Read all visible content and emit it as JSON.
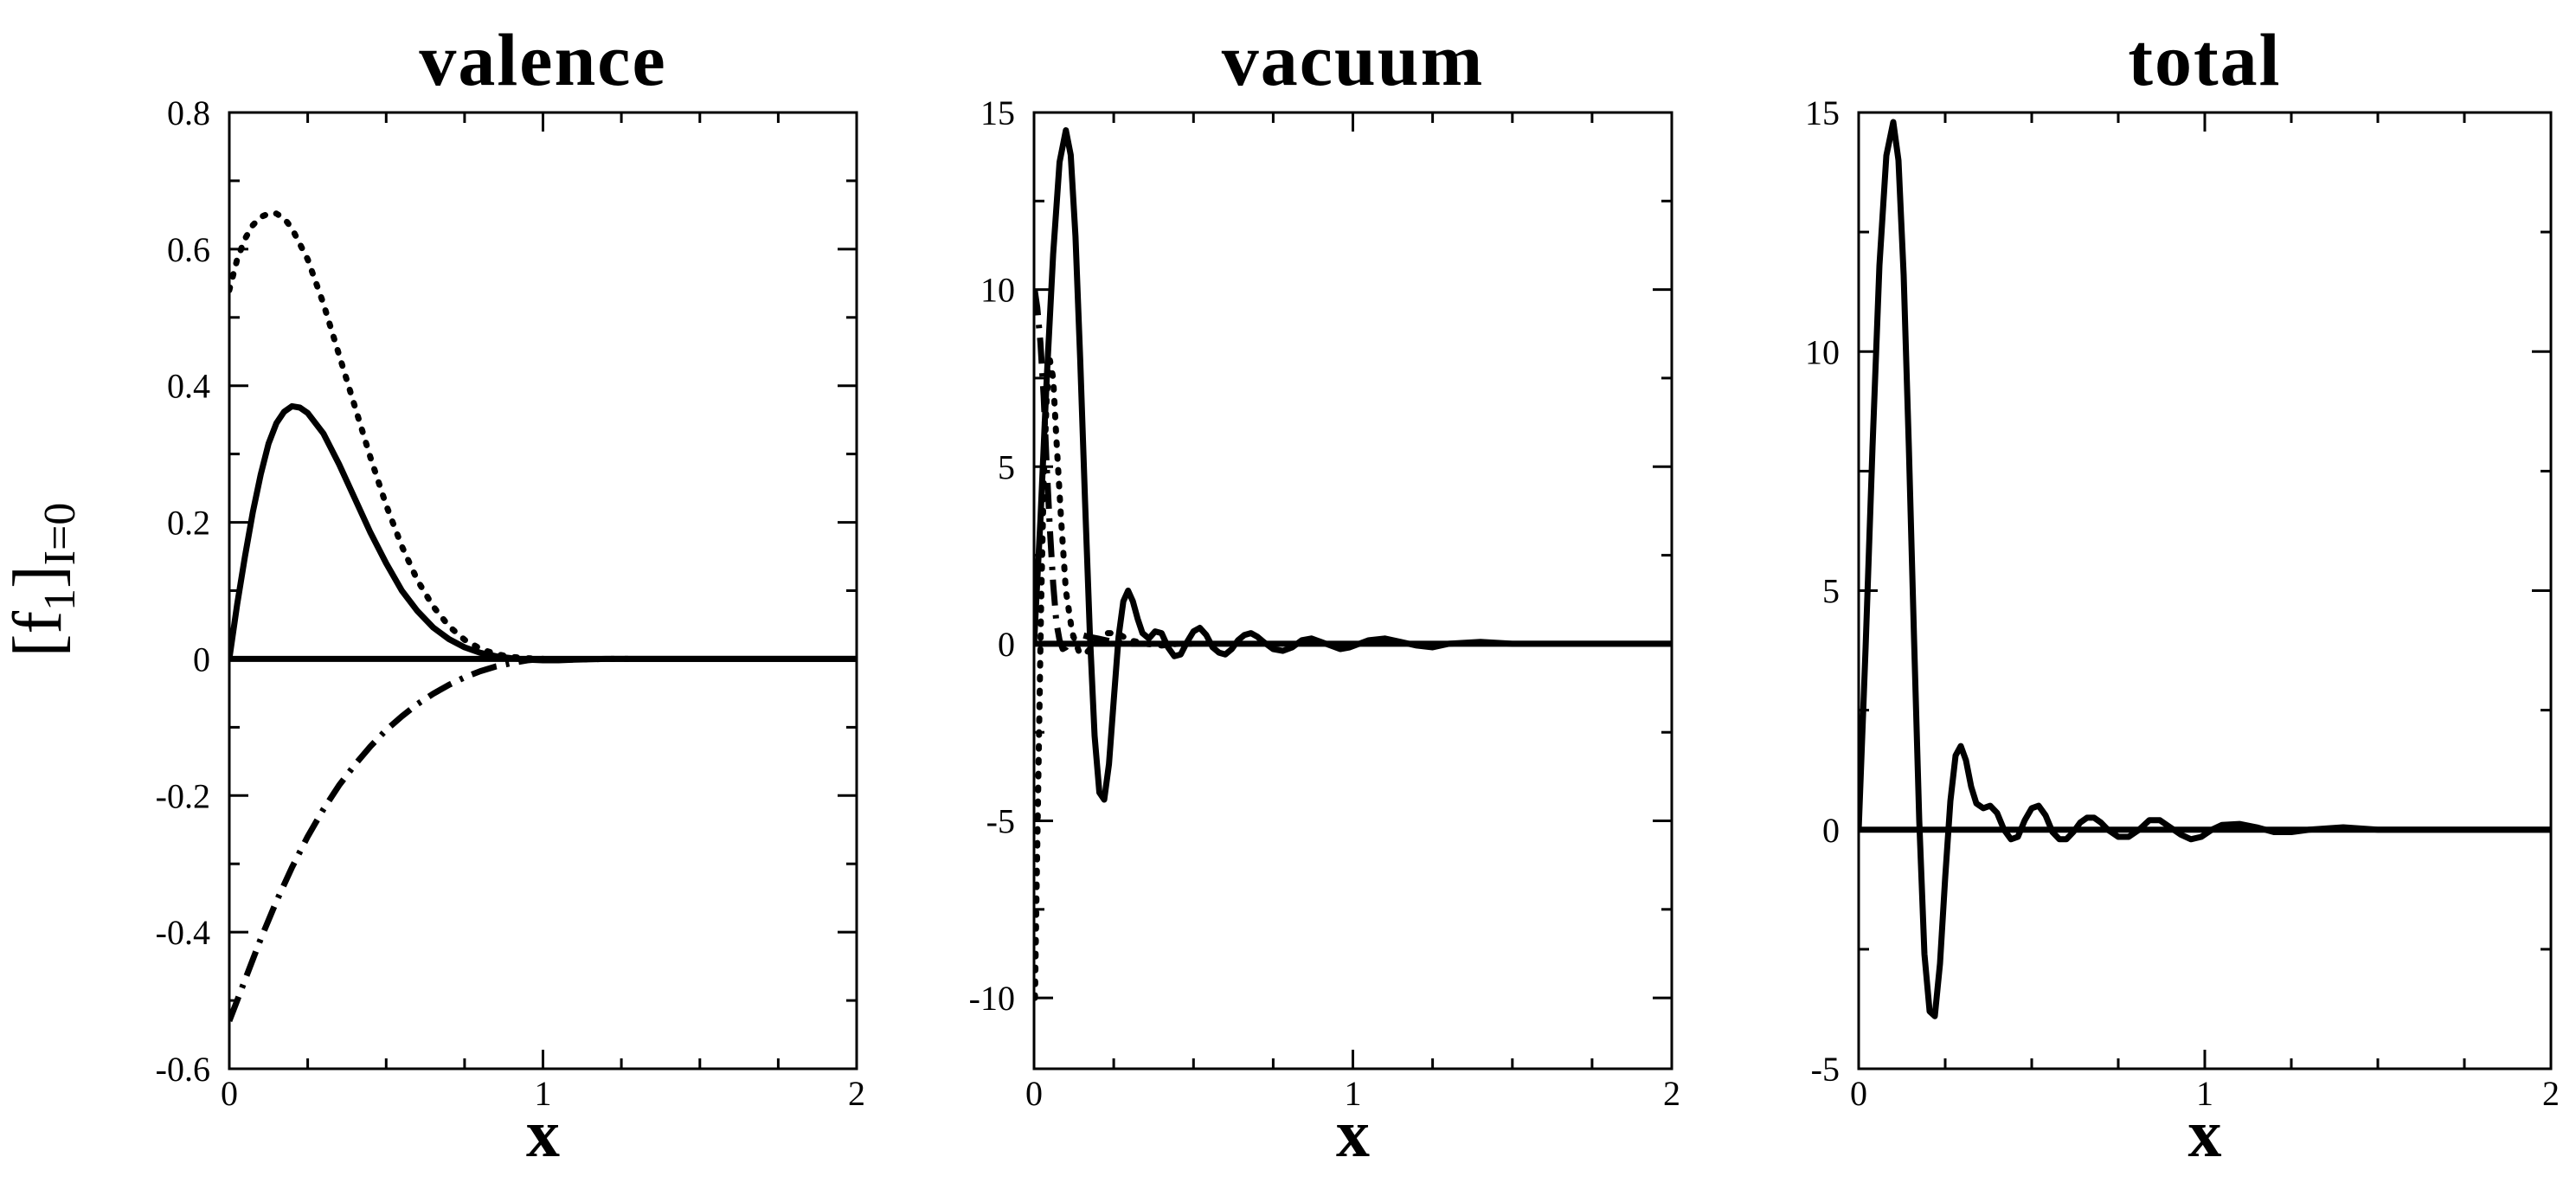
{
  "figure": {
    "ylabel": {
      "main": "[f",
      "sub1": "1",
      "close": "]",
      "sub2": "I=0"
    }
  },
  "chart_data": [
    {
      "type": "line",
      "title": "valence",
      "xlabel": "x",
      "ylabel": "[f1]I=0",
      "xlim": [
        0,
        2
      ],
      "ylim": [
        -0.6,
        0.8
      ],
      "x_ticks": [
        0,
        1,
        2
      ],
      "x_tick_labels": [
        "0",
        "1",
        "2"
      ],
      "y_ticks": [
        -0.6,
        -0.4,
        -0.2,
        0,
        0.2,
        0.4,
        0.6,
        0.8
      ],
      "y_tick_labels": [
        "-0.6",
        "-0.4",
        "-0.2",
        "0",
        "0.2",
        "0.4",
        "0.6",
        "0.8"
      ],
      "grid": false,
      "series": [
        {
          "style": "solid",
          "color": "#000000",
          "x": [
            0,
            0.025,
            0.05,
            0.075,
            0.1,
            0.125,
            0.15,
            0.175,
            0.2,
            0.225,
            0.25,
            0.3,
            0.35,
            0.4,
            0.45,
            0.5,
            0.55,
            0.6,
            0.65,
            0.7,
            0.75,
            0.8,
            0.85,
            0.9,
            0.95,
            1.0,
            1.05,
            1.1,
            1.2,
            1.3,
            1.5,
            1.7,
            2.0
          ],
          "y": [
            0,
            0.08,
            0.15,
            0.215,
            0.27,
            0.315,
            0.345,
            0.362,
            0.37,
            0.368,
            0.36,
            0.33,
            0.285,
            0.235,
            0.185,
            0.14,
            0.1,
            0.07,
            0.046,
            0.029,
            0.017,
            0.009,
            0.004,
            0.001,
            -0.001,
            -0.002,
            -0.002,
            -0.001,
            0,
            0,
            0,
            0,
            0
          ]
        },
        {
          "style": "dotted",
          "color": "#000000",
          "x": [
            0,
            0.025,
            0.05,
            0.075,
            0.1,
            0.125,
            0.15,
            0.175,
            0.2,
            0.25,
            0.3,
            0.35,
            0.4,
            0.45,
            0.5,
            0.55,
            0.6,
            0.65,
            0.7,
            0.75,
            0.8,
            0.85,
            0.9,
            0.95,
            1.0,
            1.05,
            1.1,
            1.2,
            1.3
          ],
          "y": [
            0.54,
            0.585,
            0.615,
            0.635,
            0.647,
            0.652,
            0.652,
            0.645,
            0.63,
            0.585,
            0.52,
            0.445,
            0.37,
            0.295,
            0.225,
            0.165,
            0.115,
            0.077,
            0.048,
            0.028,
            0.015,
            0.007,
            0.003,
            0.001,
            0,
            -0.001,
            -0.001,
            0,
            0
          ]
        },
        {
          "style": "dashdot",
          "color": "#000000",
          "x": [
            0,
            0.025,
            0.05,
            0.1,
            0.15,
            0.2,
            0.25,
            0.3,
            0.35,
            0.4,
            0.45,
            0.5,
            0.55,
            0.6,
            0.65,
            0.7,
            0.75,
            0.8,
            0.85,
            0.9,
            0.95,
            1.0
          ],
          "y": [
            -0.53,
            -0.5,
            -0.47,
            -0.41,
            -0.355,
            -0.305,
            -0.26,
            -0.22,
            -0.185,
            -0.155,
            -0.128,
            -0.104,
            -0.084,
            -0.066,
            -0.051,
            -0.038,
            -0.027,
            -0.018,
            -0.011,
            -0.006,
            -0.002,
            0
          ]
        },
        {
          "style": "solid",
          "color": "#000000",
          "x": [
            0,
            2
          ],
          "y": [
            0,
            0
          ]
        }
      ]
    },
    {
      "type": "line",
      "title": "vacuum",
      "xlabel": "x",
      "xlim": [
        0,
        2
      ],
      "ylim": [
        -12,
        15
      ],
      "x_ticks": [
        0,
        1,
        2
      ],
      "x_tick_labels": [
        "0",
        "1",
        "2"
      ],
      "y_ticks": [
        -10,
        -5,
        0,
        5,
        10,
        15
      ],
      "y_tick_labels": [
        "-10",
        "-5",
        "0",
        "5",
        "10",
        "15"
      ],
      "grid": false,
      "series": [
        {
          "style": "solid",
          "color": "#000000",
          "x": [
            0,
            0.02,
            0.04,
            0.06,
            0.08,
            0.1,
            0.115,
            0.13,
            0.145,
            0.16,
            0.175,
            0.19,
            0.205,
            0.22,
            0.235,
            0.25,
            0.265,
            0.28,
            0.295,
            0.31,
            0.325,
            0.34,
            0.36,
            0.38,
            0.4,
            0.42,
            0.44,
            0.46,
            0.48,
            0.5,
            0.52,
            0.54,
            0.56,
            0.58,
            0.6,
            0.62,
            0.64,
            0.66,
            0.68,
            0.7,
            0.72,
            0.75,
            0.78,
            0.81,
            0.84,
            0.87,
            0.9,
            0.93,
            0.96,
            0.99,
            1.02,
            1.05,
            1.1,
            1.15,
            1.2,
            1.25,
            1.3,
            1.4,
            1.5,
            1.7,
            2.0
          ],
          "y": [
            0,
            3.5,
            7.5,
            11.0,
            13.6,
            14.5,
            13.8,
            11.5,
            8.0,
            4.0,
            0.3,
            -2.6,
            -4.2,
            -4.4,
            -3.4,
            -1.6,
            0.2,
            1.2,
            1.5,
            1.2,
            0.7,
            0.3,
            0.15,
            0.35,
            0.3,
            -0.1,
            -0.35,
            -0.3,
            0.05,
            0.35,
            0.45,
            0.25,
            -0.1,
            -0.25,
            -0.3,
            -0.15,
            0.1,
            0.25,
            0.3,
            0.2,
            0.05,
            -0.15,
            -0.2,
            -0.1,
            0.1,
            0.15,
            0.05,
            -0.05,
            -0.15,
            -0.1,
            0.0,
            0.1,
            0.15,
            0.05,
            -0.05,
            -0.1,
            0.0,
            0.05,
            0.0,
            0.0,
            0.0
          ]
        },
        {
          "style": "dotted",
          "color": "#000000",
          "x": [
            0.003,
            0.008,
            0.015,
            0.022,
            0.03,
            0.04,
            0.05,
            0.06,
            0.07,
            0.085,
            0.1,
            0.12,
            0.14,
            0.16,
            0.18,
            0.2,
            0.23,
            0.26,
            0.3,
            0.35,
            0.4,
            0.45,
            0.5
          ],
          "y": [
            -10.0,
            -7.0,
            -3.0,
            1.0,
            4.5,
            7.0,
            8.0,
            7.5,
            5.8,
            3.5,
            1.5,
            0.3,
            -0.2,
            -0.3,
            -0.1,
            0.1,
            0.3,
            0.3,
            0.1,
            0.0,
            -0.05,
            0.0,
            0.0
          ]
        },
        {
          "style": "dashdot",
          "color": "#000000",
          "x": [
            0.002,
            0.01,
            0.02,
            0.03,
            0.04,
            0.05,
            0.06,
            0.07,
            0.08,
            0.09,
            0.1,
            0.11,
            0.13,
            0.15,
            0.17,
            0.2,
            0.25,
            0.3,
            0.35
          ],
          "y": [
            10.0,
            9.5,
            8.5,
            7.0,
            5.0,
            3.2,
            1.7,
            0.6,
            0.1,
            -0.15,
            -0.1,
            0.05,
            0.2,
            0.25,
            0.2,
            0.15,
            0.05,
            0.0,
            0.0
          ]
        },
        {
          "style": "solid",
          "color": "#000000",
          "x": [
            0,
            2
          ],
          "y": [
            0,
            0
          ]
        }
      ]
    },
    {
      "type": "line",
      "title": "total",
      "xlabel": "x",
      "xlim": [
        0,
        2
      ],
      "ylim": [
        -5,
        15
      ],
      "x_ticks": [
        0,
        1,
        2
      ],
      "x_tick_labels": [
        "0",
        "1",
        "2"
      ],
      "y_ticks": [
        -5,
        0,
        5,
        10,
        15
      ],
      "y_tick_labels": [
        "-5",
        "0",
        "5",
        "10",
        "15"
      ],
      "grid": false,
      "series": [
        {
          "style": "solid",
          "color": "#000000",
          "x": [
            0,
            0.02,
            0.04,
            0.06,
            0.08,
            0.1,
            0.115,
            0.13,
            0.145,
            0.16,
            0.175,
            0.19,
            0.205,
            0.22,
            0.235,
            0.25,
            0.265,
            0.28,
            0.295,
            0.31,
            0.325,
            0.34,
            0.36,
            0.38,
            0.4,
            0.42,
            0.44,
            0.46,
            0.48,
            0.5,
            0.52,
            0.54,
            0.56,
            0.58,
            0.6,
            0.62,
            0.64,
            0.66,
            0.68,
            0.7,
            0.72,
            0.75,
            0.78,
            0.81,
            0.84,
            0.87,
            0.9,
            0.93,
            0.96,
            0.99,
            1.02,
            1.05,
            1.1,
            1.15,
            1.2,
            1.25,
            1.3,
            1.4,
            1.5,
            1.7,
            2.0
          ],
          "y": [
            0,
            3.8,
            8.0,
            11.8,
            14.1,
            14.8,
            14.0,
            11.6,
            8.0,
            4.0,
            0.2,
            -2.6,
            -3.8,
            -3.9,
            -2.8,
            -1.0,
            0.6,
            1.55,
            1.75,
            1.45,
            0.9,
            0.55,
            0.45,
            0.5,
            0.35,
            0.0,
            -0.2,
            -0.15,
            0.2,
            0.45,
            0.5,
            0.3,
            -0.05,
            -0.2,
            -0.2,
            -0.05,
            0.15,
            0.25,
            0.25,
            0.15,
            0.0,
            -0.15,
            -0.15,
            0.0,
            0.2,
            0.2,
            0.05,
            -0.1,
            -0.2,
            -0.15,
            0.0,
            0.1,
            0.12,
            0.05,
            -0.05,
            -0.05,
            0.0,
            0.05,
            0.0,
            0.0,
            0.0
          ]
        },
        {
          "style": "solid",
          "color": "#000000",
          "x": [
            0,
            2
          ],
          "y": [
            0,
            0
          ]
        }
      ]
    }
  ]
}
